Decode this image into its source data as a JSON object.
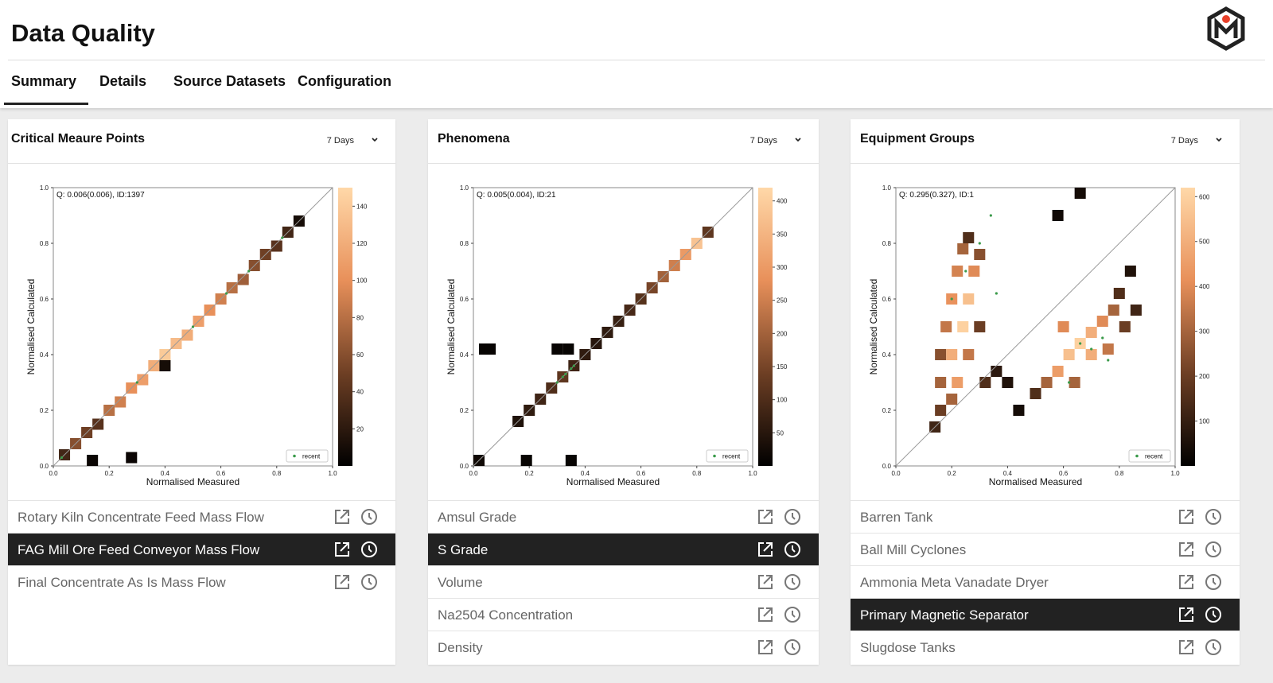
{
  "header": {
    "title": "Data Quality",
    "tabs": [
      "Summary",
      "Details",
      "Source Datasets",
      "Configuration"
    ],
    "active_tab": 0
  },
  "panels": [
    {
      "title": "Critical Meaure Points",
      "period": "7 Days",
      "plot": {
        "type": "heatmap",
        "annotation": "Q: 0.006(0.006), ID:1397",
        "xlabel": "Normalised Measured",
        "ylabel": "Normalised Calculated",
        "xlim": [
          0,
          1
        ],
        "ylim": [
          0,
          1
        ],
        "xticks": [
          {
            "value": 0,
            "label": "0.0"
          },
          0.2,
          0.4,
          0.6,
          0.8,
          {
            "value": 1,
            "label": "1.0"
          }
        ],
        "yticks": [
          {
            "value": 0,
            "label": "0.0"
          },
          0.2,
          0.4,
          0.6,
          0.8,
          {
            "value": 1,
            "label": "1.0"
          }
        ],
        "clim": [
          0,
          150
        ],
        "cticks": [
          20,
          40,
          60,
          80,
          100,
          120,
          140
        ],
        "colormap": [
          "#000000",
          "#6e3f24",
          "#e8905a",
          "#ffd8a8"
        ],
        "legend": "lower right",
        "cells": {
          "x": [
            0.04,
            0.08,
            0.12,
            0.16,
            0.2,
            0.24,
            0.28,
            0.32,
            0.36,
            0.4,
            0.44,
            0.48,
            0.52,
            0.56,
            0.6,
            0.64,
            0.68,
            0.72,
            0.76,
            0.8,
            0.84,
            0.88,
            0.14,
            0.28,
            0.4
          ],
          "y": [
            0.04,
            0.08,
            0.12,
            0.15,
            0.2,
            0.23,
            0.28,
            0.31,
            0.36,
            0.4,
            0.44,
            0.47,
            0.52,
            0.56,
            0.6,
            0.64,
            0.67,
            0.72,
            0.76,
            0.79,
            0.84,
            0.88,
            0.02,
            0.03,
            0.36
          ],
          "count": [
            30,
            60,
            50,
            40,
            80,
            90,
            100,
            110,
            120,
            140,
            130,
            120,
            110,
            100,
            90,
            80,
            70,
            60,
            50,
            40,
            30,
            10,
            5,
            5,
            10
          ]
        },
        "recent": {
          "name": "recent",
          "color": "#3a9a4a",
          "x": [
            0.03,
            0.3,
            0.5,
            0.62,
            0.7,
            0.82
          ],
          "y": [
            0.03,
            0.3,
            0.5,
            0.62,
            0.7,
            0.82
          ]
        }
      },
      "items": [
        "Rotary Kiln Concentrate Feed Mass Flow",
        "FAG Mill Ore Feed Conveyor Mass Flow",
        "Final Concentrate As Is Mass Flow"
      ],
      "selected": 1
    },
    {
      "title": "Phenomena",
      "period": "7 Days",
      "plot": {
        "type": "heatmap",
        "annotation": "Q: 0.005(0.004), ID:21",
        "xlabel": "Normalised Measured",
        "ylabel": "Normalised Calculated",
        "xlim": [
          0,
          1
        ],
        "ylim": [
          0,
          1
        ],
        "xticks": [
          {
            "value": 0,
            "label": "0.0"
          },
          0.2,
          0.4,
          0.6,
          0.8,
          {
            "value": 1,
            "label": "1.0"
          }
        ],
        "yticks": [
          {
            "value": 0,
            "label": "0.0"
          },
          0.2,
          0.4,
          0.6,
          0.8,
          {
            "value": 1,
            "label": "1.0"
          }
        ],
        "clim": [
          0,
          420
        ],
        "cticks": [
          50,
          100,
          150,
          200,
          250,
          300,
          350,
          400
        ],
        "colormap": [
          "#000000",
          "#6e3f24",
          "#e8905a",
          "#ffd8a8"
        ],
        "legend": "lower right",
        "cells": {
          "x": [
            0.02,
            0.16,
            0.2,
            0.24,
            0.28,
            0.32,
            0.36,
            0.4,
            0.44,
            0.48,
            0.52,
            0.56,
            0.6,
            0.64,
            0.68,
            0.72,
            0.76,
            0.8,
            0.84,
            0.04,
            0.06,
            0.3,
            0.34,
            0.19,
            0.35
          ],
          "y": [
            0.02,
            0.16,
            0.2,
            0.24,
            0.28,
            0.32,
            0.36,
            0.4,
            0.44,
            0.48,
            0.52,
            0.56,
            0.6,
            0.64,
            0.68,
            0.72,
            0.76,
            0.8,
            0.84,
            0.42,
            0.42,
            0.42,
            0.42,
            0.02,
            0.02
          ],
          "count": [
            20,
            40,
            60,
            80,
            100,
            120,
            80,
            60,
            50,
            60,
            70,
            90,
            110,
            150,
            200,
            250,
            300,
            380,
            120,
            10,
            10,
            10,
            10,
            10,
            10
          ]
        },
        "recent": {
          "name": "recent",
          "color": "#3a9a4a",
          "x": [
            0.3,
            0.32,
            0.33,
            0.35,
            0.36
          ],
          "y": [
            0.3,
            0.32,
            0.33,
            0.35,
            0.36
          ]
        }
      },
      "items": [
        "Amsul Grade",
        "S Grade",
        "Volume",
        "Na2504 Concentration",
        "Density"
      ],
      "selected": 1
    },
    {
      "title": "Equipment Groups",
      "period": "7 Days",
      "plot": {
        "type": "heatmap",
        "annotation": "Q: 0.295(0.327), ID:1",
        "xlabel": "Normalised Measured",
        "ylabel": "Normalised Calculated",
        "xlim": [
          0,
          1
        ],
        "ylim": [
          0,
          1
        ],
        "xticks": [
          {
            "value": 0,
            "label": "0.0"
          },
          0.2,
          0.4,
          0.6,
          0.8,
          {
            "value": 1,
            "label": "1.0"
          }
        ],
        "yticks": [
          {
            "value": 0,
            "label": "0.0"
          },
          0.2,
          0.4,
          0.6,
          0.8,
          {
            "value": 1,
            "label": "1.0"
          }
        ],
        "clim": [
          0,
          620
        ],
        "cticks": [
          100,
          200,
          300,
          400,
          500,
          600
        ],
        "colormap": [
          "#000000",
          "#6e3f24",
          "#e8905a",
          "#ffd8a8"
        ],
        "legend": "lower right",
        "cells": {
          "x": [
            0.14,
            0.16,
            0.16,
            0.16,
            0.18,
            0.2,
            0.22,
            0.24,
            0.26,
            0.2,
            0.24,
            0.26,
            0.28,
            0.3,
            0.22,
            0.26,
            0.3,
            0.2,
            0.32,
            0.36,
            0.4,
            0.44,
            0.5,
            0.54,
            0.58,
            0.62,
            0.66,
            0.7,
            0.74,
            0.78,
            0.82,
            0.86,
            0.6,
            0.7,
            0.76,
            0.64,
            0.8,
            0.84,
            0.66,
            0.58
          ],
          "y": [
            0.14,
            0.2,
            0.3,
            0.4,
            0.5,
            0.6,
            0.7,
            0.78,
            0.82,
            0.4,
            0.5,
            0.6,
            0.7,
            0.76,
            0.3,
            0.4,
            0.5,
            0.24,
            0.3,
            0.34,
            0.3,
            0.2,
            0.26,
            0.3,
            0.34,
            0.4,
            0.44,
            0.48,
            0.52,
            0.56,
            0.5,
            0.56,
            0.5,
            0.4,
            0.42,
            0.3,
            0.62,
            0.7,
            0.98,
            0.9
          ],
          "count": [
            120,
            200,
            300,
            250,
            350,
            420,
            380,
            300,
            150,
            500,
            600,
            550,
            400,
            250,
            450,
            350,
            200,
            300,
            150,
            80,
            60,
            40,
            150,
            300,
            450,
            550,
            600,
            500,
            400,
            300,
            200,
            120,
            400,
            500,
            350,
            300,
            150,
            60,
            40,
            30
          ]
        },
        "recent": {
          "name": "recent",
          "color": "#3a9a4a",
          "x": [
            0.2,
            0.25,
            0.3,
            0.34,
            0.36,
            0.66,
            0.7,
            0.74,
            0.76,
            0.62
          ],
          "y": [
            0.6,
            0.7,
            0.8,
            0.9,
            0.62,
            0.44,
            0.42,
            0.46,
            0.38,
            0.3
          ]
        }
      },
      "items": [
        "Barren Tank",
        "Ball Mill Cyclones",
        "Ammonia Meta Vanadate Dryer",
        "Primary Magnetic Separator",
        "Slugdose Tanks"
      ],
      "selected": 3
    }
  ]
}
